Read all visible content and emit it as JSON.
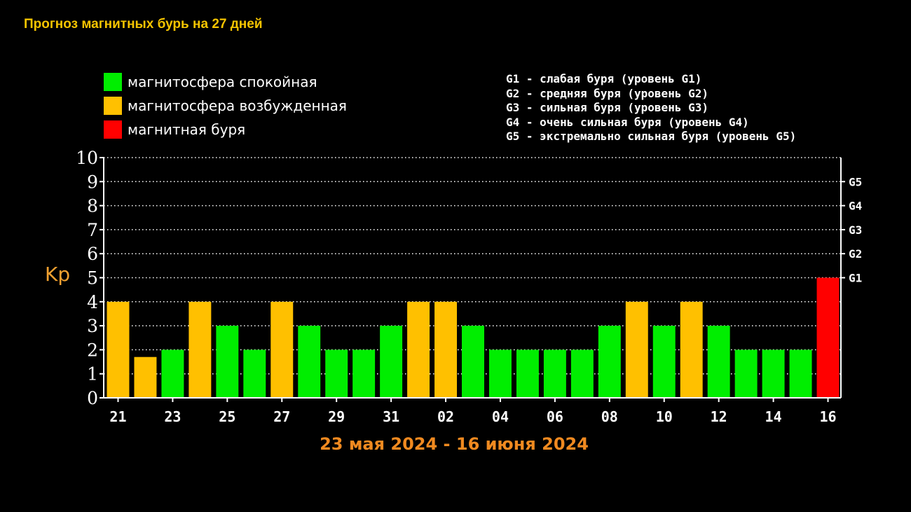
{
  "title": "Прогноз магнитных бурь на 27 дней",
  "legend": [
    {
      "label": "магнитосфера спокойная",
      "color": "#00ee00"
    },
    {
      "label": "магнитосфера возбужденная",
      "color": "#ffc000"
    },
    {
      "label": "магнитная буря",
      "color": "#ff0000"
    }
  ],
  "g_levels": [
    "G1 - слабая буря (уровень G1)",
    "G2 - средняя буря (уровень G2)",
    "G3 - сильная буря (уровень G3)",
    "G4 - очень сильная буря (уровень G4)",
    "G5 - экстремально сильная буря (уровень G5)"
  ],
  "date_range": "23 мая 2024 - 16 июня 2024",
  "chart_data": {
    "type": "bar",
    "ylabel": "Kp",
    "ylim": [
      0,
      10
    ],
    "y_ticks": [
      "0",
      "1",
      "2",
      "3",
      "4",
      "5",
      "6",
      "7",
      "8",
      "9",
      "10"
    ],
    "right_ticks": [
      {
        "label": "G1",
        "value": 5
      },
      {
        "label": "G2",
        "value": 6
      },
      {
        "label": "G3",
        "value": 7
      },
      {
        "label": "G4",
        "value": 8
      },
      {
        "label": "G5",
        "value": 9
      }
    ],
    "grid": "dotted horizontal",
    "x_tick_labels": [
      "21",
      "23",
      "25",
      "27",
      "29",
      "31",
      "02",
      "04",
      "06",
      "08",
      "10",
      "12",
      "14",
      "16"
    ],
    "values": [
      4,
      1.7,
      2,
      4,
      3,
      2,
      4,
      3,
      2,
      2,
      3,
      4,
      4,
      3,
      2,
      2,
      2,
      2,
      3,
      4,
      3,
      4,
      3,
      2,
      2,
      2,
      5
    ],
    "states": [
      "excited",
      "excited",
      "calm",
      "excited",
      "calm",
      "calm",
      "excited",
      "calm",
      "calm",
      "calm",
      "calm",
      "excited",
      "excited",
      "calm",
      "calm",
      "calm",
      "calm",
      "calm",
      "calm",
      "excited",
      "calm",
      "excited",
      "calm",
      "calm",
      "calm",
      "calm",
      "storm"
    ],
    "colors": {
      "calm": "#00ee00",
      "excited": "#ffc000",
      "storm": "#ff0000"
    }
  }
}
